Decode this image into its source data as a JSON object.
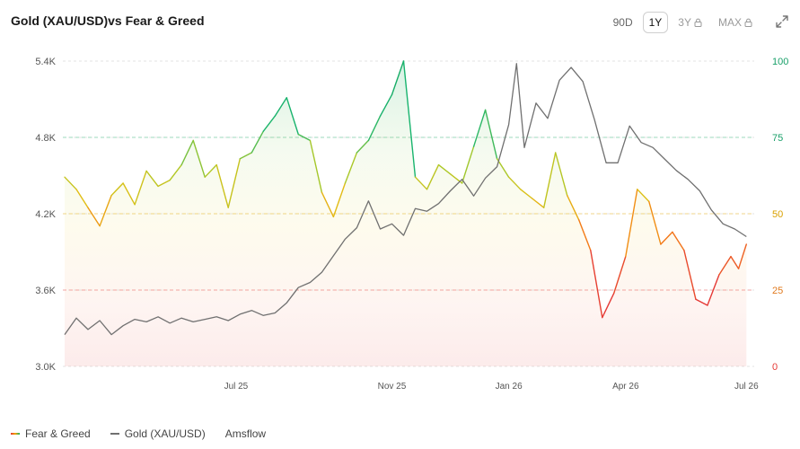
{
  "header": {
    "title": "Gold (XAU/USD)vs Fear & Greed"
  },
  "ranges": [
    {
      "label": "90D",
      "active": false,
      "locked": false
    },
    {
      "label": "1Y",
      "active": true,
      "locked": false
    },
    {
      "label": "3Y",
      "active": false,
      "locked": true
    },
    {
      "label": "MAX",
      "active": false,
      "locked": true
    }
  ],
  "icons": {
    "expand": "expand-icon",
    "lock": "lock-icon"
  },
  "legend": {
    "fear_greed": "Fear & Greed",
    "gold": "Gold (XAU/USD)",
    "source": "Amsflow"
  },
  "colors": {
    "gold_line": "#707070",
    "fear": "#e53935",
    "neutral": "#f5a100",
    "greed": "#18b46e",
    "left_axis_text": "#555555",
    "right_axis_text_top": "#1aa06a",
    "right_axis_text_bottom": "#e53935"
  },
  "chart_data": {
    "type": "line",
    "title": "Gold (XAU/USD)vs Fear & Greed",
    "x_ticks": [
      "Jul 25",
      "Nov 25",
      "Jan 26",
      "Apr 26",
      "Jul 26"
    ],
    "x_tick_positions": [
      6.6,
      10.6,
      13.6,
      16.6,
      19.7
    ],
    "x_range": [
      2.2,
      19.9
    ],
    "y_left": {
      "label": "",
      "ticks": [
        "3.0K",
        "3.6K",
        "4.2K",
        "4.8K",
        "5.4K"
      ],
      "range": [
        3000,
        5400
      ]
    },
    "y_right": {
      "label": "",
      "ticks": [
        "0",
        "25",
        "50",
        "75",
        "100"
      ],
      "range": [
        0,
        100
      ]
    },
    "reference_lines_right": [
      25,
      50,
      75
    ],
    "grid": "horizontal dashed",
    "legend_position": "bottom-left",
    "series": [
      {
        "name": "Gold (XAU/USD)",
        "axis": "left",
        "points": [
          [
            2.2,
            3250
          ],
          [
            2.5,
            3380
          ],
          [
            2.8,
            3290
          ],
          [
            3.1,
            3360
          ],
          [
            3.4,
            3250
          ],
          [
            3.7,
            3320
          ],
          [
            4.0,
            3370
          ],
          [
            4.3,
            3350
          ],
          [
            4.6,
            3390
          ],
          [
            4.9,
            3340
          ],
          [
            5.2,
            3380
          ],
          [
            5.5,
            3350
          ],
          [
            5.8,
            3370
          ],
          [
            6.1,
            3390
          ],
          [
            6.4,
            3360
          ],
          [
            6.7,
            3410
          ],
          [
            7.0,
            3440
          ],
          [
            7.3,
            3400
          ],
          [
            7.6,
            3420
          ],
          [
            7.9,
            3500
          ],
          [
            8.2,
            3620
          ],
          [
            8.5,
            3660
          ],
          [
            8.8,
            3740
          ],
          [
            9.1,
            3870
          ],
          [
            9.4,
            4000
          ],
          [
            9.7,
            4090
          ],
          [
            10.0,
            4300
          ],
          [
            10.3,
            4080
          ],
          [
            10.6,
            4120
          ],
          [
            10.9,
            4030
          ],
          [
            11.2,
            4240
          ],
          [
            11.5,
            4220
          ],
          [
            11.8,
            4280
          ],
          [
            12.1,
            4380
          ],
          [
            12.4,
            4470
          ],
          [
            12.7,
            4340
          ],
          [
            13.0,
            4480
          ],
          [
            13.3,
            4570
          ],
          [
            13.6,
            4900
          ],
          [
            13.8,
            5380
          ],
          [
            14.0,
            4720
          ],
          [
            14.3,
            5070
          ],
          [
            14.6,
            4950
          ],
          [
            14.9,
            5250
          ],
          [
            15.2,
            5350
          ],
          [
            15.5,
            5240
          ],
          [
            15.8,
            4940
          ],
          [
            16.1,
            4600
          ],
          [
            16.4,
            4600
          ],
          [
            16.7,
            4890
          ],
          [
            17.0,
            4760
          ],
          [
            17.3,
            4720
          ],
          [
            17.6,
            4630
          ],
          [
            17.9,
            4540
          ],
          [
            18.2,
            4470
          ],
          [
            18.5,
            4380
          ],
          [
            18.8,
            4230
          ],
          [
            19.1,
            4120
          ],
          [
            19.4,
            4080
          ],
          [
            19.7,
            4020
          ]
        ]
      },
      {
        "name": "Fear & Greed",
        "axis": "right",
        "points": [
          [
            2.2,
            62
          ],
          [
            2.5,
            58
          ],
          [
            2.8,
            52
          ],
          [
            3.1,
            46
          ],
          [
            3.4,
            56
          ],
          [
            3.7,
            60
          ],
          [
            4.0,
            53
          ],
          [
            4.3,
            64
          ],
          [
            4.6,
            59
          ],
          [
            4.9,
            61
          ],
          [
            5.2,
            66
          ],
          [
            5.5,
            74
          ],
          [
            5.8,
            62
          ],
          [
            6.1,
            66
          ],
          [
            6.4,
            52
          ],
          [
            6.7,
            68
          ],
          [
            7.0,
            70
          ],
          [
            7.3,
            77
          ],
          [
            7.6,
            82
          ],
          [
            7.9,
            88
          ],
          [
            8.2,
            76
          ],
          [
            8.5,
            74
          ],
          [
            8.8,
            57
          ],
          [
            9.1,
            49
          ],
          [
            9.4,
            60
          ],
          [
            9.7,
            70
          ],
          [
            10.0,
            74
          ],
          [
            10.3,
            82
          ],
          [
            10.6,
            89
          ],
          [
            10.9,
            100
          ],
          [
            11.2,
            62
          ],
          [
            11.5,
            58
          ],
          [
            11.8,
            66
          ],
          [
            12.1,
            63
          ],
          [
            12.4,
            60
          ],
          [
            12.7,
            72
          ],
          [
            13.0,
            84
          ],
          [
            13.3,
            68
          ],
          [
            13.6,
            62
          ],
          [
            13.9,
            58
          ],
          [
            14.2,
            55
          ],
          [
            14.5,
            52
          ],
          [
            14.8,
            70
          ],
          [
            15.1,
            56
          ],
          [
            15.4,
            48
          ],
          [
            15.7,
            38
          ],
          [
            16.0,
            16
          ],
          [
            16.3,
            24
          ],
          [
            16.6,
            36
          ],
          [
            16.9,
            58
          ],
          [
            17.2,
            54
          ],
          [
            17.5,
            40
          ],
          [
            17.8,
            44
          ],
          [
            18.1,
            38
          ],
          [
            18.4,
            22
          ],
          [
            18.7,
            20
          ],
          [
            19.0,
            30
          ],
          [
            19.3,
            36
          ],
          [
            19.5,
            32
          ],
          [
            19.7,
            40
          ]
        ]
      }
    ]
  }
}
